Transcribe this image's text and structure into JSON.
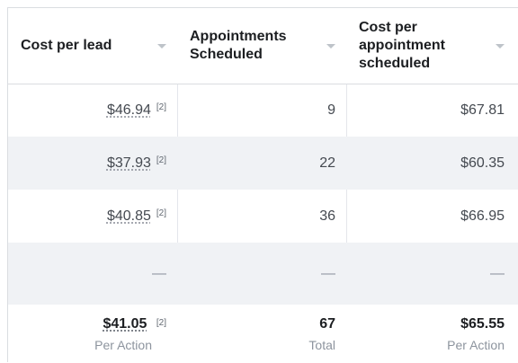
{
  "columns": [
    {
      "label": "Cost per lead"
    },
    {
      "label": "Appointments Scheduled"
    },
    {
      "label": "Cost per appointment scheduled"
    }
  ],
  "rows": [
    {
      "cost_per_lead": "$46.94",
      "cpl_note": "[2]",
      "appointments": "9",
      "cost_per_appt": "$67.81"
    },
    {
      "cost_per_lead": "$37.93",
      "cpl_note": "[2]",
      "appointments": "22",
      "cost_per_appt": "$60.35"
    },
    {
      "cost_per_lead": "$40.85",
      "cpl_note": "[2]",
      "appointments": "36",
      "cost_per_appt": "$66.95"
    },
    {
      "cost_per_lead": "—",
      "cpl_note": "",
      "appointments": "—",
      "cost_per_appt": "—"
    }
  ],
  "totals": {
    "cost_per_lead": "$41.05",
    "cpl_note": "[2]",
    "cpl_sub": "Per Action",
    "appointments": "67",
    "appointments_sub": "Total",
    "cost_per_appt": "$65.55",
    "cpa_sub": "Per Action"
  }
}
